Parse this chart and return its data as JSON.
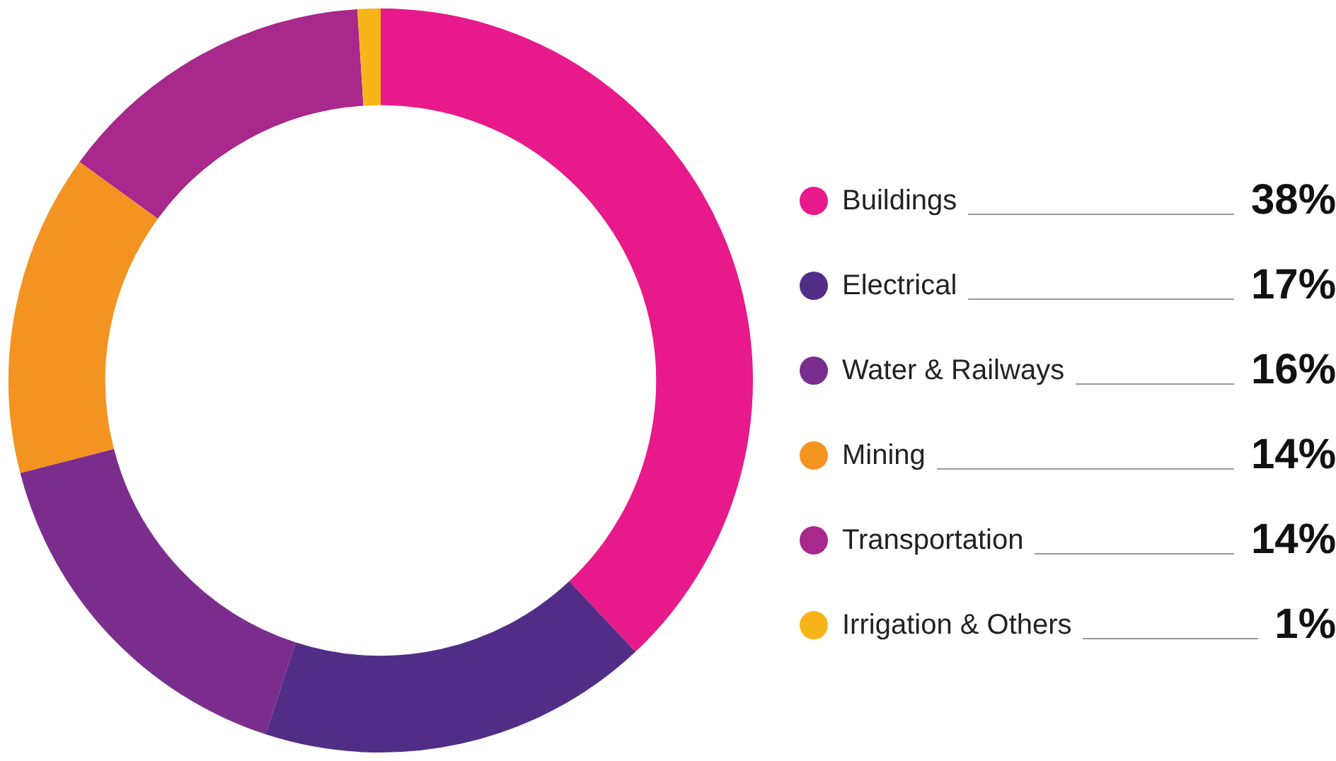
{
  "chart_data": {
    "type": "donut",
    "categories": [
      "Buildings",
      "Electrical",
      "Water & Railways",
      "Mining",
      "Transportation",
      "Irrigation & Others"
    ],
    "values": [
      38,
      17,
      16,
      14,
      14,
      1
    ],
    "value_labels": [
      "38%",
      "17%",
      "16%",
      "14%",
      "14%",
      "1%"
    ],
    "colors": [
      "#e8198b",
      "#522d88",
      "#7b2d8e",
      "#f39422",
      "#a8288c",
      "#f7b519"
    ],
    "legend": "right"
  }
}
